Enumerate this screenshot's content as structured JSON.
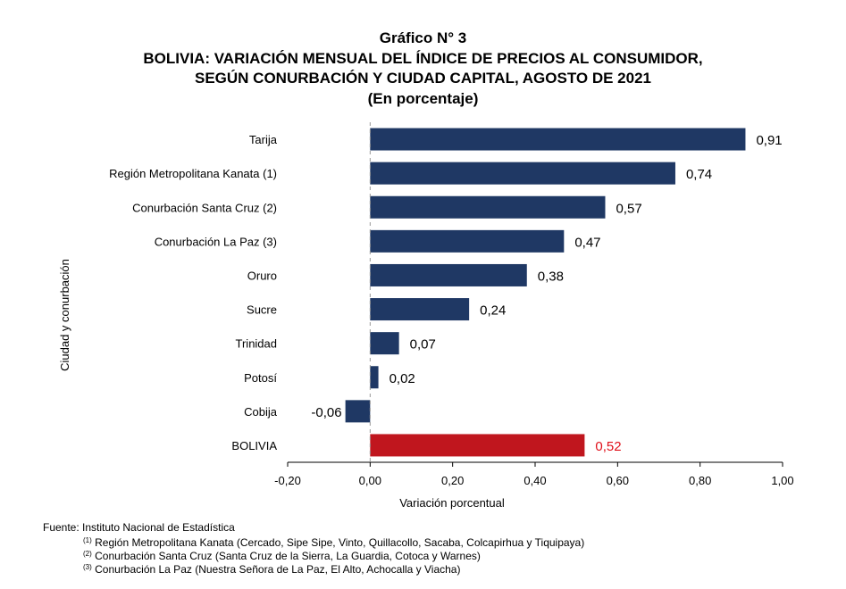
{
  "title": {
    "line1": "Gráfico N° 3",
    "line2": "BOLIVIA: VARIACIÓN MENSUAL DEL ÍNDICE DE PRECIOS AL CONSUMIDOR,",
    "line3": "SEGÚN CONURBACIÓN Y CIUDAD CAPITAL, AGOSTO DE 2021",
    "line4": "(En porcentaje)"
  },
  "chart_data": {
    "type": "bar",
    "orientation": "horizontal",
    "categories": [
      "Tarija",
      "Región Metropolitana Kanata (1)",
      "Conurbación Santa Cruz (2)",
      "Conurbación La Paz (3)",
      "Oruro",
      "Sucre",
      "Trinidad",
      "Potosí",
      "Cobija",
      "BOLIVIA"
    ],
    "values": [
      0.91,
      0.74,
      0.57,
      0.47,
      0.38,
      0.24,
      0.07,
      0.02,
      -0.06,
      0.52
    ],
    "value_labels": [
      "0,91",
      "0,74",
      "0,57",
      "0,47",
      "0,38",
      "0,24",
      "0,07",
      "0,02",
      "-0,06",
      "0,52"
    ],
    "xlabel": "Variación porcentual",
    "ylabel": "Ciudad y conurbación",
    "xlim": [
      -0.2,
      1.0
    ],
    "xticks": [
      -0.2,
      0.0,
      0.2,
      0.4,
      0.6,
      0.8,
      1.0
    ],
    "xtick_labels": [
      "-0,20",
      "0,00",
      "0,20",
      "0,40",
      "0,60",
      "0,80",
      "1,00"
    ],
    "grid": false,
    "colors": {
      "bar": "#1f3864",
      "highlight": "#c0161e",
      "highlight_label": "#e0101a"
    },
    "highlight_category": "BOLIVIA"
  },
  "footer": {
    "source": "Fuente: Instituto Nacional de Estadística",
    "notes": [
      {
        "mark": "(1)",
        "text": "Región Metropolitana Kanata (Cercado, Sipe Sipe, Vinto, Quillacollo, Sacaba, Colcapirhua y Tiquipaya)"
      },
      {
        "mark": "(2)",
        "text": "Conurbación Santa Cruz (Santa Cruz de la Sierra, La Guardia, Cotoca y Warnes)"
      },
      {
        "mark": "(3)",
        "text": "Conurbación La Paz (Nuestra Señora de La Paz, El Alto, Achocalla y Viacha)"
      }
    ]
  }
}
